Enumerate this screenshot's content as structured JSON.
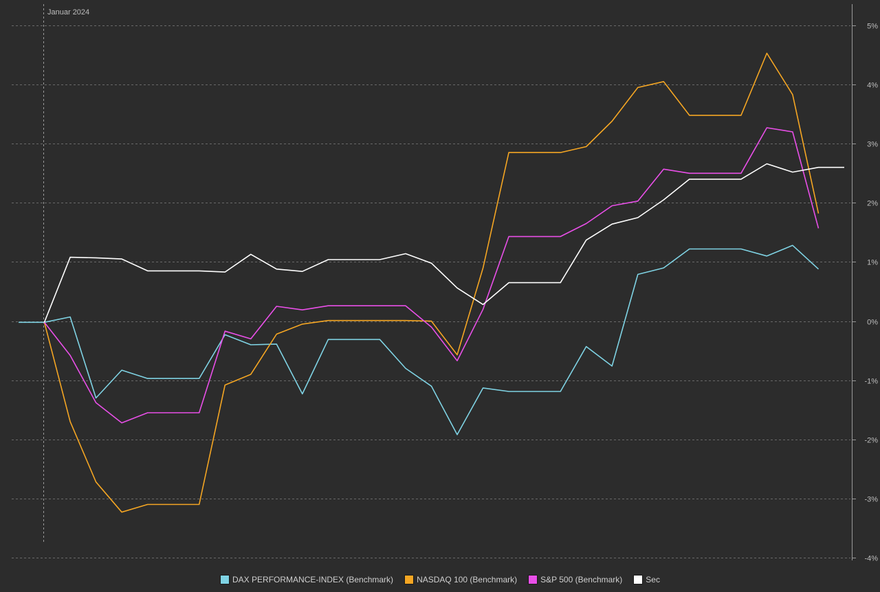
{
  "chart_data": {
    "type": "line",
    "period_label": "Januar 2024",
    "y_axis": {
      "ylim": [
        -4,
        5
      ],
      "ticks": [
        5,
        4,
        3,
        2,
        1,
        0,
        -1,
        -2,
        -3,
        -4
      ],
      "tick_labels": [
        "5%",
        "4%",
        "3%",
        "2%",
        "1%",
        "0%",
        "-1%",
        "-2%",
        "-3%",
        "-4%"
      ],
      "position": "right"
    },
    "grid": true,
    "legend_position": "bottom-center",
    "x": [
      0,
      1,
      2,
      3,
      4,
      5,
      6,
      7,
      8,
      9,
      10,
      11,
      12,
      13,
      14,
      15,
      16,
      17,
      18,
      19,
      20,
      21,
      22,
      23,
      24,
      25,
      26,
      27,
      28,
      29,
      30,
      31,
      32
    ],
    "series": [
      {
        "name": "DAX PERFORMANCE-INDEX (Benchmark)",
        "color": "#7fd3e4",
        "values": [
          -0.02,
          -0.02,
          0.07,
          -1.3,
          -0.83,
          -0.97,
          -0.97,
          -0.97,
          -0.23,
          -0.4,
          -0.39,
          -1.23,
          -0.31,
          -0.31,
          -0.31,
          -0.8,
          -1.1,
          -1.92,
          -1.13,
          -1.19,
          -1.19,
          -1.19,
          -0.43,
          -0.76,
          0.79,
          0.9,
          1.22,
          1.22,
          1.22,
          1.1,
          1.28,
          0.88,
          null
        ]
      },
      {
        "name": "NASDAQ 100 (Benchmark)",
        "color": "#f5a623",
        "values": [
          null,
          -0.02,
          -1.7,
          -2.72,
          -3.23,
          -3.1,
          -3.1,
          -3.1,
          -1.08,
          -0.9,
          -0.22,
          -0.05,
          0.01,
          0.01,
          0.01,
          0.01,
          0.0,
          -0.57,
          0.9,
          2.85,
          2.85,
          2.85,
          2.95,
          3.38,
          3.95,
          4.05,
          3.48,
          3.48,
          3.48,
          4.53,
          3.83,
          1.82,
          null
        ]
      },
      {
        "name": "S&P 500 (Benchmark)",
        "color": "#e94fe8",
        "values": [
          null,
          -0.02,
          -0.58,
          -1.38,
          -1.72,
          -1.55,
          -1.55,
          -1.55,
          -0.17,
          -0.3,
          0.25,
          0.19,
          0.26,
          0.26,
          0.26,
          0.26,
          -0.1,
          -0.67,
          0.2,
          1.43,
          1.43,
          1.43,
          1.65,
          1.95,
          2.03,
          2.57,
          2.5,
          2.5,
          2.5,
          3.27,
          3.2,
          1.57,
          null
        ]
      },
      {
        "name": "Sec",
        "color": "#ffffff",
        "values": [
          null,
          -0.02,
          1.08,
          1.07,
          1.05,
          0.85,
          0.85,
          0.85,
          0.83,
          1.13,
          0.88,
          0.84,
          1.04,
          1.04,
          1.04,
          1.14,
          0.98,
          0.56,
          0.28,
          0.65,
          0.65,
          0.65,
          1.37,
          1.64,
          1.75,
          2.05,
          2.4,
          2.4,
          2.4,
          2.66,
          2.52,
          2.6,
          2.6
        ]
      }
    ]
  }
}
